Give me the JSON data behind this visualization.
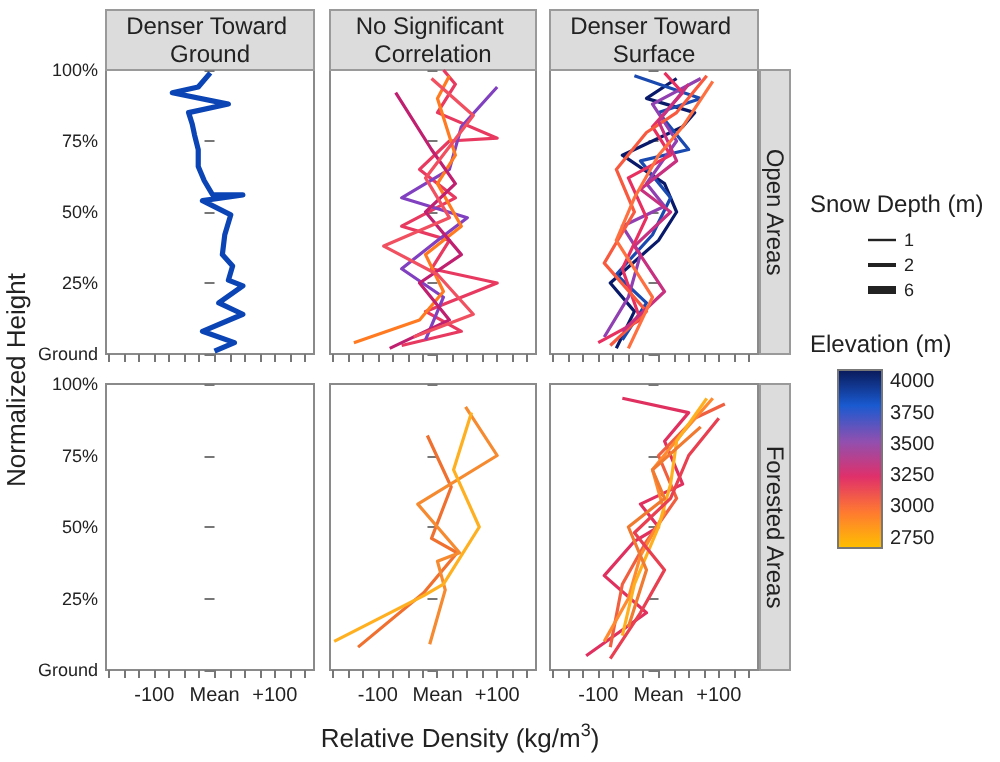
{
  "chart_data": [
    {
      "type": "line",
      "title": "Denser Toward Ground",
      "ylabel": "Normalized Height",
      "tick_labels": "y",
      "xlim": [
        -180,
        165
      ],
      "xticks": [
        {
          "value": -175,
          "label": null
        },
        {
          "value": -150,
          "label": null
        },
        {
          "value": -125,
          "label": null
        },
        {
          "value": -100,
          "label": null
        },
        {
          "value": -75,
          "label": null
        },
        {
          "value": -50,
          "label": null
        },
        {
          "value": -25,
          "label": null
        },
        {
          "value": 0,
          "label": null
        },
        {
          "value": 25,
          "label": null
        },
        {
          "value": 50,
          "label": null
        },
        {
          "value": 75,
          "label": null
        },
        {
          "value": 100,
          "label": null
        },
        {
          "value": 125,
          "label": null
        },
        {
          "value": 150,
          "label": null
        }
      ],
      "ylim": [
        0,
        100
      ],
      "yticks": [
        {
          "value": 0,
          "label": "Ground"
        },
        {
          "value": 25,
          "label": "25%"
        },
        {
          "value": 50,
          "label": "50%"
        },
        {
          "value": 75,
          "label": "75%"
        },
        {
          "value": 100,
          "label": "100%"
        }
      ],
      "series": [
        {
          "color": "#0b45b5",
          "x": [
            0,
            33,
            -20,
            47,
            7,
            47,
            23,
            30,
            13,
            17,
            27,
            -20,
            47,
            -3,
            -17,
            -27,
            -27,
            -33,
            -37,
            -43,
            23,
            -70,
            -27,
            -7
          ],
          "values": [
            1,
            4,
            8,
            14,
            18,
            24,
            26,
            31,
            35,
            42,
            49,
            54,
            56,
            56,
            61,
            66,
            72,
            77,
            81,
            85,
            88,
            92,
            94,
            99
          ]
        }
      ]
    },
    {
      "type": "line",
      "title": "No Significant Correlation",
      "tick_labels": false,
      "xlim": [
        -180,
        165
      ],
      "xticks": [
        {
          "value": -175,
          "label": null
        },
        {
          "value": -150,
          "label": null
        },
        {
          "value": -125,
          "label": null
        },
        {
          "value": -100,
          "label": null
        },
        {
          "value": -75,
          "label": null
        },
        {
          "value": -50,
          "label": null
        },
        {
          "value": -25,
          "label": null
        },
        {
          "value": 0,
          "label": null
        },
        {
          "value": 25,
          "label": null
        },
        {
          "value": 50,
          "label": null
        },
        {
          "value": 75,
          "label": null
        },
        {
          "value": 100,
          "label": null
        },
        {
          "value": 125,
          "label": null
        },
        {
          "value": 150,
          "label": null
        }
      ],
      "ylim": [
        0,
        100
      ],
      "yticks": [
        {
          "value": 0,
          "label": null
        },
        {
          "value": 25,
          "label": null
        },
        {
          "value": 50,
          "label": null
        },
        {
          "value": 75,
          "label": null
        },
        {
          "value": 100,
          "label": null
        }
      ],
      "series": [
        {
          "color": "#e83a60",
          "x": [
            -60,
            40,
            -20,
            100,
            -10,
            20,
            -60,
            30,
            -30,
            20,
            100,
            0,
            30,
            10
          ],
          "values": [
            3,
            8,
            15,
            25,
            30,
            40,
            45,
            55,
            65,
            75,
            76,
            85,
            95,
            100
          ]
        },
        {
          "color": "#8040c0",
          "x": [
            -20,
            10,
            -60,
            0,
            50,
            -60,
            20,
            40,
            100
          ],
          "values": [
            5,
            20,
            30,
            40,
            48,
            55,
            65,
            80,
            94
          ]
        },
        {
          "color": "#ff7a20",
          "x": [
            -140,
            -30,
            10,
            -20,
            40,
            0,
            30,
            0,
            20
          ],
          "values": [
            4,
            12,
            22,
            35,
            45,
            60,
            70,
            90,
            98
          ]
        },
        {
          "color": "#c02070",
          "x": [
            -80,
            20,
            -30,
            40,
            -20,
            30,
            -10,
            -70
          ],
          "values": [
            2,
            12,
            25,
            35,
            50,
            60,
            72,
            92
          ]
        },
        {
          "color": "#f05060",
          "x": [
            -40,
            60,
            0,
            -90,
            20,
            -20,
            60,
            -10
          ],
          "values": [
            6,
            14,
            28,
            38,
            48,
            62,
            84,
            97
          ]
        }
      ]
    },
    {
      "type": "line",
      "title": "Denser Toward Surface",
      "subtitle": "Open Areas",
      "tick_labels": false,
      "legend_title": "Snow Depth (m)",
      "annotations": [
        "1",
        "2",
        "6"
      ],
      "xlim": [
        -180,
        165
      ],
      "xticks": [
        {
          "value": -175,
          "label": null
        },
        {
          "value": -150,
          "label": null
        },
        {
          "value": -125,
          "label": null
        },
        {
          "value": -100,
          "label": null
        },
        {
          "value": -75,
          "label": null
        },
        {
          "value": -50,
          "label": null
        },
        {
          "value": -25,
          "label": null
        },
        {
          "value": 0,
          "label": null
        },
        {
          "value": 25,
          "label": null
        },
        {
          "value": 50,
          "label": null
        },
        {
          "value": 75,
          "label": null
        },
        {
          "value": 100,
          "label": null
        },
        {
          "value": 125,
          "label": null
        },
        {
          "value": 150,
          "label": null
        }
      ],
      "ylim": [
        0,
        100
      ],
      "yticks": [
        {
          "value": 0,
          "label": null
        },
        {
          "value": 25,
          "label": null
        },
        {
          "value": 50,
          "label": null
        },
        {
          "value": 75,
          "label": null
        },
        {
          "value": 100,
          "label": null
        }
      ],
      "series": [
        {
          "color": "#0a1a6a",
          "x": [
            -70,
            -40,
            -80,
            0,
            30,
            10,
            -60,
            40,
            60,
            -20,
            30
          ],
          "values": [
            2,
            15,
            25,
            40,
            50,
            60,
            70,
            80,
            85,
            90,
            97
          ]
        },
        {
          "color": "#1a4ab0",
          "x": [
            -60,
            -20,
            -70,
            -10,
            20,
            -30,
            50,
            0,
            70,
            -40
          ],
          "values": [
            5,
            18,
            28,
            42,
            55,
            68,
            72,
            85,
            90,
            98
          ]
        },
        {
          "color": "#9040b0",
          "x": [
            -90,
            -50,
            -30,
            -60,
            10,
            -20,
            30,
            -10,
            70
          ],
          "values": [
            6,
            20,
            35,
            45,
            52,
            60,
            75,
            88,
            97
          ]
        },
        {
          "color": "#e83060",
          "x": [
            -100,
            -30,
            -60,
            -20,
            -50,
            20,
            -10,
            40,
            10
          ],
          "values": [
            4,
            12,
            30,
            48,
            62,
            70,
            80,
            92,
            99
          ]
        },
        {
          "color": "#f85a40",
          "x": [
            -80,
            -20,
            -90,
            -40,
            -70,
            -20,
            30,
            80
          ],
          "values": [
            3,
            15,
            32,
            50,
            65,
            78,
            85,
            98
          ]
        },
        {
          "color": "#c83080",
          "x": [
            -60,
            10,
            -40,
            20,
            -30,
            30,
            0,
            50
          ],
          "values": [
            8,
            22,
            38,
            50,
            58,
            68,
            82,
            95
          ]
        },
        {
          "color": "#ff7040",
          "x": [
            -50,
            -10,
            -70,
            -40,
            0,
            40,
            90
          ],
          "values": [
            2,
            20,
            40,
            55,
            70,
            80,
            96
          ]
        }
      ]
    },
    {
      "type": "line",
      "xlim": [
        -180,
        165
      ],
      "xticks": [
        {
          "value": -175,
          "label": null
        },
        {
          "value": -150,
          "label": null
        },
        {
          "value": -125,
          "label": null
        },
        {
          "value": -100,
          "label": "-100"
        },
        {
          "value": -75,
          "label": null
        },
        {
          "value": -50,
          "label": null
        },
        {
          "value": -25,
          "label": null
        },
        {
          "value": 0,
          "label": "Mean"
        },
        {
          "value": 25,
          "label": null
        },
        {
          "value": 50,
          "label": null
        },
        {
          "value": 75,
          "label": null
        },
        {
          "value": 100,
          "label": "+100"
        },
        {
          "value": 125,
          "label": null
        },
        {
          "value": 150,
          "label": null
        }
      ],
      "ylim": [
        0,
        100
      ],
      "yticks": [
        {
          "value": 0,
          "label": "Ground"
        },
        {
          "value": 25,
          "label": "25%"
        },
        {
          "value": 50,
          "label": "50%"
        },
        {
          "value": 75,
          "label": "75%"
        },
        {
          "value": 100,
          "label": "100%"
        }
      ]
    },
    {
      "type": "line",
      "xlabel": "Relative Density (kg/m$^{3}$)",
      "tick_labels": "x",
      "xlim": [
        -180,
        165
      ],
      "xticks": [
        {
          "value": -175,
          "label": null
        },
        {
          "value": -150,
          "label": null
        },
        {
          "value": -125,
          "label": null
        },
        {
          "value": -100,
          "label": "-100"
        },
        {
          "value": -75,
          "label": null
        },
        {
          "value": -50,
          "label": null
        },
        {
          "value": -25,
          "label": null
        },
        {
          "value": 0,
          "label": "Mean"
        },
        {
          "value": 25,
          "label": null
        },
        {
          "value": 50,
          "label": null
        },
        {
          "value": 75,
          "label": null
        },
        {
          "value": 100,
          "label": "+100"
        },
        {
          "value": 125,
          "label": null
        },
        {
          "value": 150,
          "label": null
        }
      ],
      "ylim": [
        0,
        100
      ],
      "yticks": [
        {
          "value": 0,
          "label": null
        },
        {
          "value": 25,
          "label": null
        },
        {
          "value": 50,
          "label": null
        },
        {
          "value": 75,
          "label": null
        },
        {
          "value": 100,
          "label": null
        }
      ],
      "series": [
        {
          "color": "#f07030",
          "x": [
            -133,
            -23,
            33,
            -10,
            23,
            -17
          ],
          "values": [
            8,
            27,
            41,
            46,
            64,
            82
          ]
        },
        {
          "color": "#f58a30",
          "x": [
            -13,
            13,
            0,
            37,
            -33,
            100,
            47
          ],
          "values": [
            9,
            28,
            38,
            41,
            58,
            75,
            92
          ]
        },
        {
          "color": "#ffb020",
          "x": [
            -173,
            -23,
            10,
            70,
            27,
            57
          ],
          "values": [
            10,
            26,
            30,
            50,
            70,
            90
          ]
        }
      ]
    },
    {
      "type": "line",
      "subtitle": "Forested Areas",
      "tick_labels": "x",
      "clabel": "Elevation (m)",
      "clim": [
        2675,
        4100
      ],
      "cticks": [
        2750,
        3000,
        3250,
        3500,
        3750,
        4000
      ],
      "xlim": [
        -180,
        165
      ],
      "xticks": [
        {
          "value": -175,
          "label": null
        },
        {
          "value": -150,
          "label": null
        },
        {
          "value": -125,
          "label": null
        },
        {
          "value": -100,
          "label": "-100"
        },
        {
          "value": -75,
          "label": null
        },
        {
          "value": -50,
          "label": null
        },
        {
          "value": -25,
          "label": null
        },
        {
          "value": 0,
          "label": "Mean"
        },
        {
          "value": 25,
          "label": null
        },
        {
          "value": 50,
          "label": null
        },
        {
          "value": 75,
          "label": null
        },
        {
          "value": 100,
          "label": "+100"
        },
        {
          "value": 125,
          "label": null
        },
        {
          "value": 150,
          "label": null
        }
      ],
      "ylim": [
        0,
        100
      ],
      "yticks": [
        {
          "value": 0,
          "label": null
        },
        {
          "value": 25,
          "label": null
        },
        {
          "value": 50,
          "label": null
        },
        {
          "value": 75,
          "label": null
        },
        {
          "value": 100,
          "label": null
        }
      ],
      "series": [
        {
          "color": "#e03060",
          "x": [
            -120,
            -20,
            -90,
            -40,
            0,
            -30,
            40,
            10,
            50,
            -60
          ],
          "values": [
            5,
            20,
            33,
            45,
            50,
            58,
            65,
            80,
            90,
            95
          ]
        },
        {
          "color": "#f06040",
          "x": [
            -80,
            -60,
            -20,
            30,
            0,
            60,
            110
          ],
          "values": [
            8,
            30,
            45,
            60,
            75,
            88,
            93
          ]
        },
        {
          "color": "#ff8a30",
          "x": [
            -90,
            -50,
            -30,
            10,
            -10,
            40,
            90
          ],
          "values": [
            10,
            25,
            40,
            55,
            70,
            83,
            95
          ]
        },
        {
          "color": "#ffb020",
          "x": [
            -60,
            -40,
            0,
            20,
            30,
            80
          ],
          "values": [
            12,
            30,
            50,
            65,
            80,
            95
          ]
        },
        {
          "color": "#e84050",
          "x": [
            -80,
            -30,
            10,
            -40,
            20,
            50,
            100
          ],
          "values": [
            4,
            20,
            35,
            48,
            60,
            75,
            88
          ]
        },
        {
          "color": "#f07a30",
          "x": [
            -50,
            -20,
            -50,
            10,
            -10,
            70
          ],
          "values": [
            15,
            35,
            50,
            60,
            70,
            85
          ]
        }
      ]
    }
  ]
}
